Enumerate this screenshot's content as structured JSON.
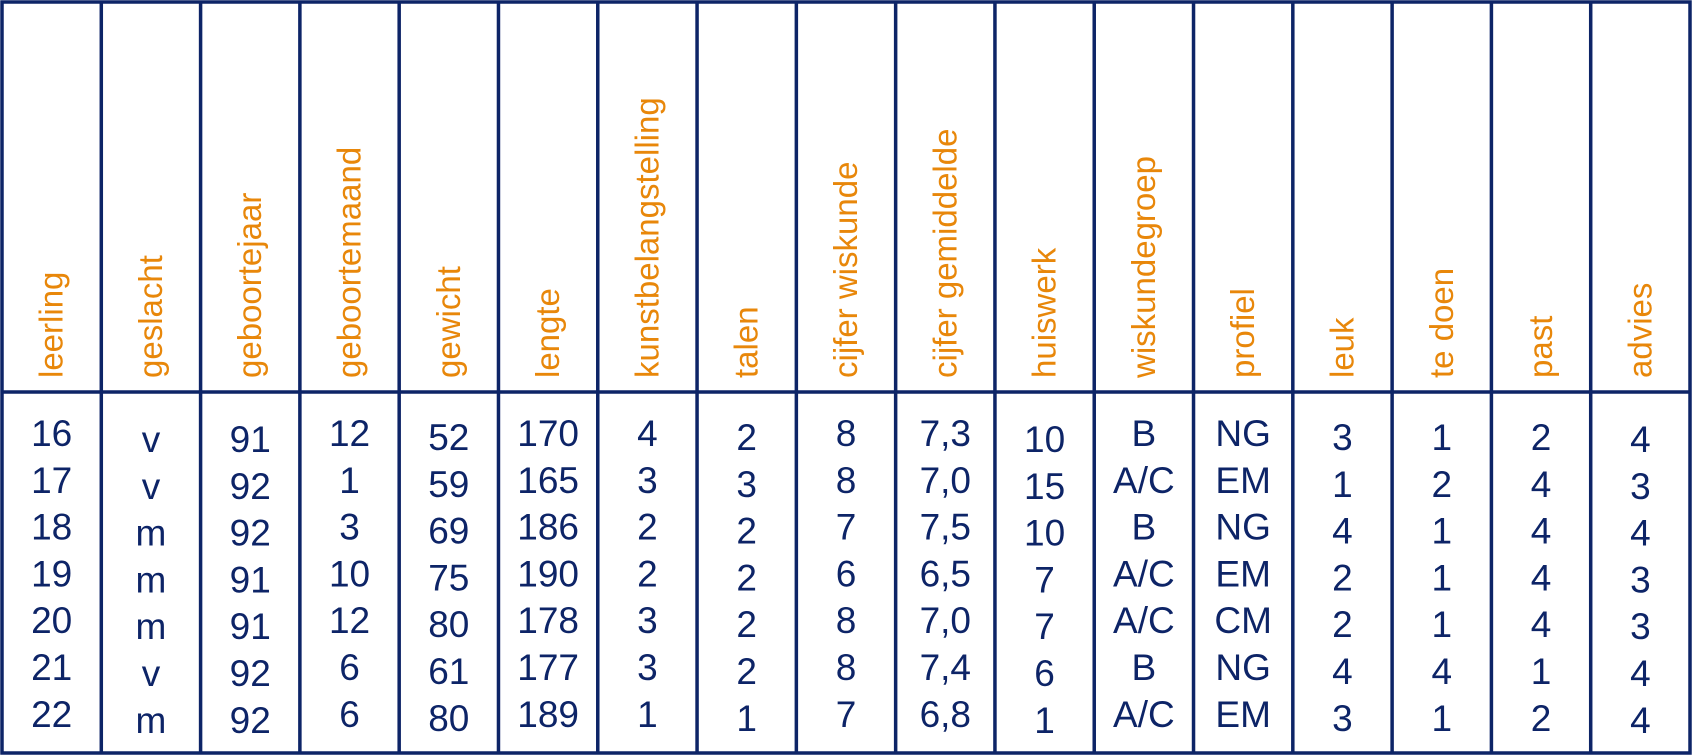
{
  "table": {
    "headers": [
      "leerling",
      "geslacht",
      "geboortejaar",
      "geboortemaand",
      "gewicht",
      "lengte",
      "kunstbelangstelling",
      "talen",
      "cijfer wiskunde",
      "cijfer gemiddelde",
      "huiswerk",
      "wiskundegroep",
      "profiel",
      "leuk",
      "te doen",
      "past",
      "advies"
    ],
    "rows": [
      [
        "16",
        "v",
        "91",
        "12",
        "52",
        "170",
        "4",
        "2",
        "8",
        "7,3",
        "10",
        "B",
        "NG",
        "3",
        "1",
        "2",
        "4"
      ],
      [
        "17",
        "v",
        "92",
        "1",
        "59",
        "165",
        "3",
        "3",
        "8",
        "7,0",
        "15",
        "A/C",
        "EM",
        "1",
        "2",
        "4",
        "3"
      ],
      [
        "18",
        "m",
        "92",
        "3",
        "69",
        "186",
        "2",
        "2",
        "7",
        "7,5",
        "10",
        "B",
        "NG",
        "4",
        "1",
        "4",
        "4"
      ],
      [
        "19",
        "m",
        "91",
        "10",
        "75",
        "190",
        "2",
        "2",
        "6",
        "6,5",
        "7",
        "A/C",
        "EM",
        "2",
        "1",
        "4",
        "3"
      ],
      [
        "20",
        "m",
        "91",
        "12",
        "80",
        "178",
        "3",
        "2",
        "8",
        "7,0",
        "7",
        "A/C",
        "CM",
        "2",
        "1",
        "4",
        "3"
      ],
      [
        "21",
        "v",
        "92",
        "6",
        "61",
        "177",
        "3",
        "2",
        "8",
        "7,4",
        "6",
        "B",
        "NG",
        "4",
        "4",
        "1",
        "4"
      ],
      [
        "22",
        "m",
        "92",
        "6",
        "80",
        "189",
        "1",
        "1",
        "7",
        "6,8",
        "1",
        "A/C",
        "EM",
        "3",
        "1",
        "2",
        "4"
      ]
    ]
  }
}
